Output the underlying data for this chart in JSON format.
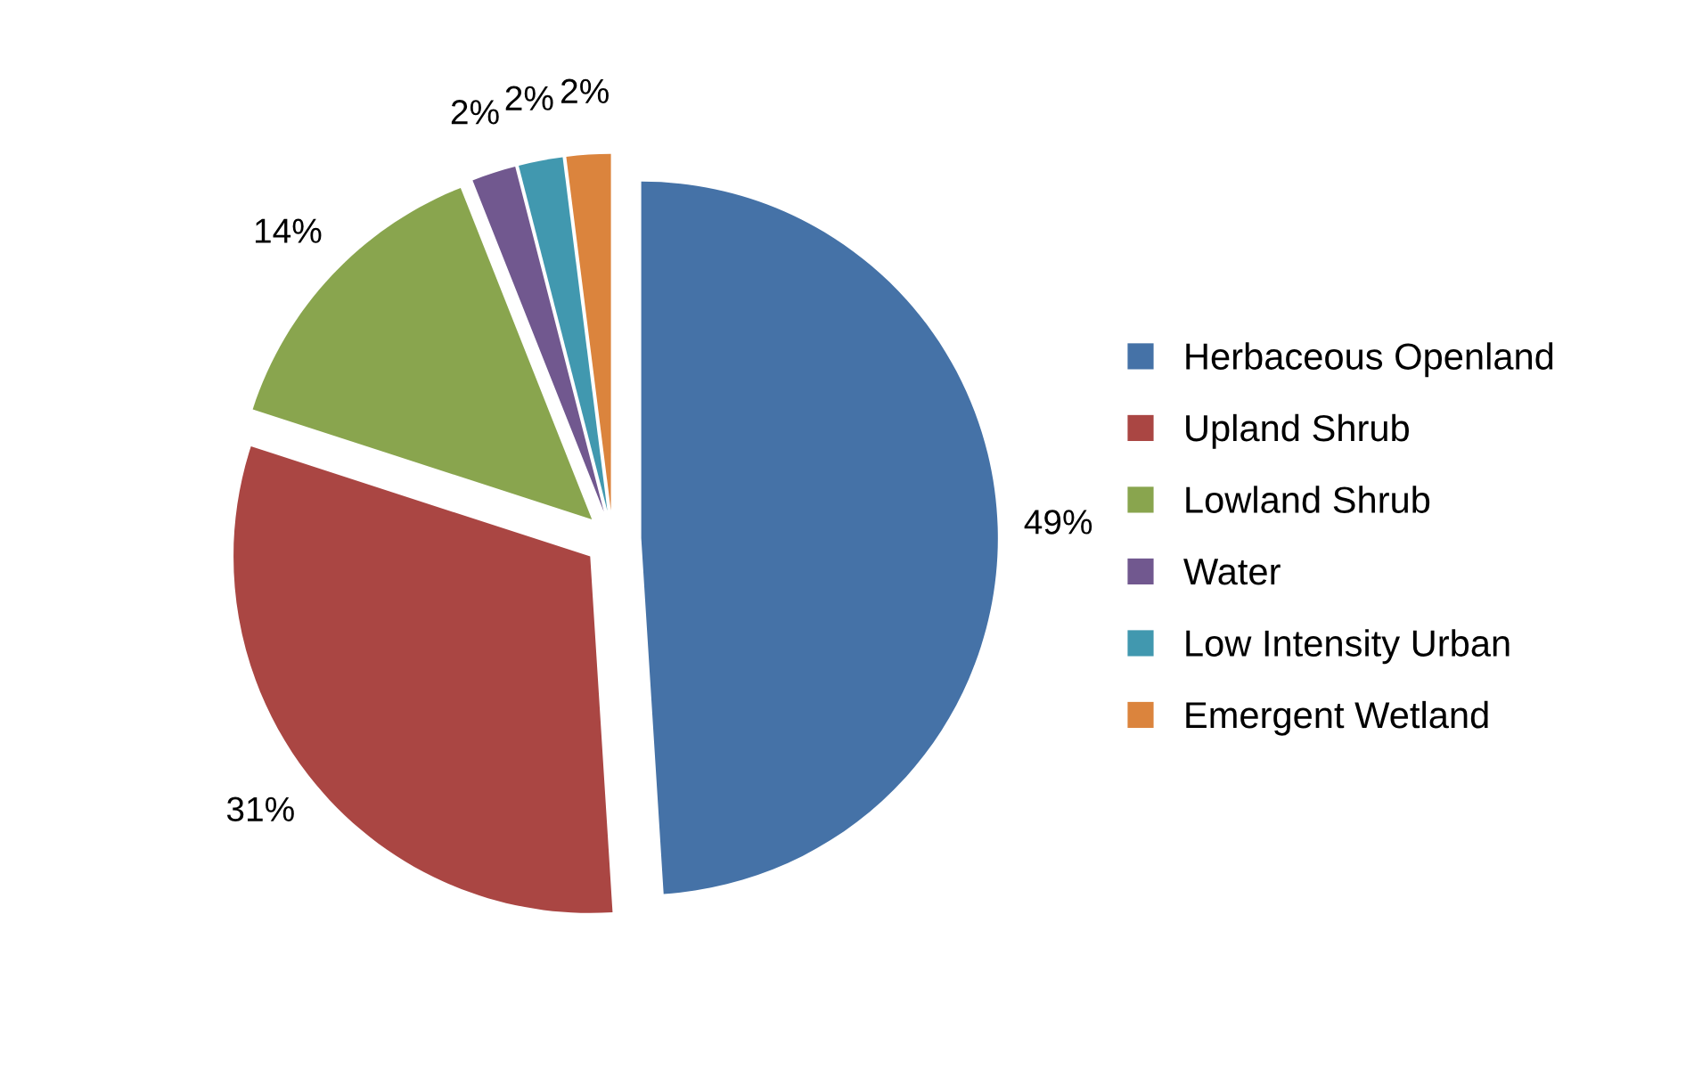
{
  "chart_data": {
    "type": "pie",
    "categories": [
      "Herbaceous Openland",
      "Upland Shrub",
      "Lowland Shrub",
      "Water",
      "Low Intensity Urban",
      "Emergent Wetland"
    ],
    "values": [
      49,
      31,
      14,
      2,
      2,
      2
    ],
    "value_labels": [
      "49%",
      "31%",
      "14%",
      "2%",
      "2%",
      "2%"
    ],
    "colors": [
      "#4572a7",
      "#aa4643",
      "#89a54e",
      "#71588f",
      "#4198af",
      "#db843d"
    ],
    "legend": "right"
  }
}
